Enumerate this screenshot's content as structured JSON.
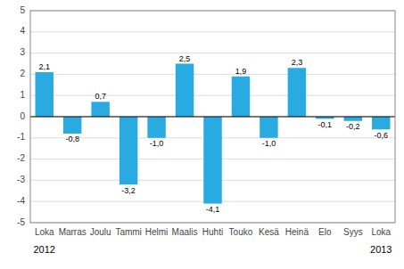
{
  "chart_data": {
    "type": "bar",
    "categories": [
      "Loka",
      "Marras",
      "Joulu",
      "Tammi",
      "Helmi",
      "Maalis",
      "Huhti",
      "Touko",
      "Kesä",
      "Heinä",
      "Elo",
      "Syys",
      "Loka"
    ],
    "values": [
      2.1,
      -0.8,
      0.7,
      -3.2,
      -1.0,
      2.5,
      -4.1,
      1.9,
      -1.0,
      2.3,
      -0.1,
      -0.2,
      -0.6
    ],
    "value_labels": [
      "2,1",
      "-0,8",
      "0,7",
      "-3,2",
      "-1,0",
      "2,5",
      "-4,1",
      "1,9",
      "-1,0",
      "2,3",
      "-0,1",
      "-0,2",
      "-0,6"
    ],
    "color": "#29ABE2",
    "ylim": [
      -5,
      5
    ],
    "yticks": [
      -5,
      -4,
      -3,
      -2,
      -1,
      0,
      1,
      2,
      3,
      4,
      5
    ],
    "grid": true,
    "data_labels": true,
    "annotations": [
      {
        "text": "2012",
        "x": 0
      },
      {
        "text": "2013",
        "x": 12
      }
    ]
  }
}
